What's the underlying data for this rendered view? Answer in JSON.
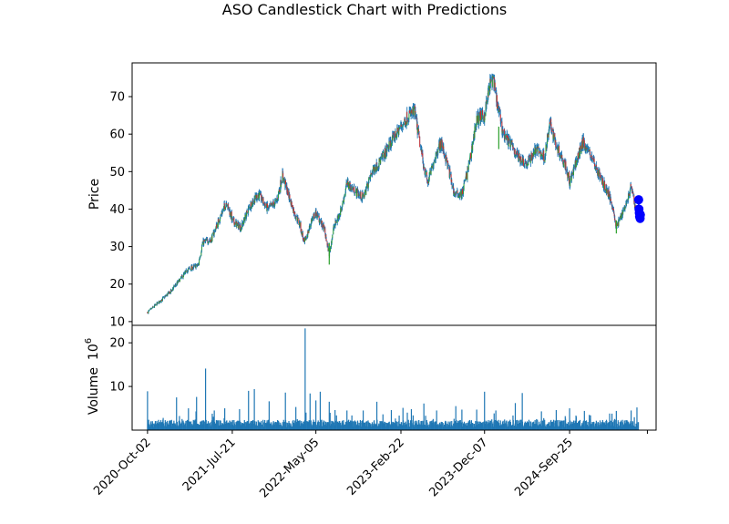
{
  "chart_data": {
    "type": "candlestick",
    "title": "ASO Candlestick Chart with Predictions",
    "price_panel": {
      "ylabel": "Price",
      "yticks": [
        10,
        20,
        30,
        40,
        50,
        60,
        70
      ],
      "ylim": [
        9,
        79
      ],
      "up_color": "#2ca02c",
      "down_color": "#d62728",
      "wick_mid_color": "#1f77b4",
      "close_path": [
        [
          "2020-10-02",
          12.5
        ],
        [
          "2020-11-15",
          15.5
        ],
        [
          "2020-12-20",
          18.0
        ],
        [
          "2021-01-20",
          21.0
        ],
        [
          "2021-02-20",
          24.0
        ],
        [
          "2021-03-25",
          25.0
        ],
        [
          "2021-04-10",
          31.0
        ],
        [
          "2021-05-10",
          32.0
        ],
        [
          "2021-06-10",
          38.0
        ],
        [
          "2021-07-01",
          42.0
        ],
        [
          "2021-07-21",
          37.0
        ],
        [
          "2021-08-20",
          35.0
        ],
        [
          "2021-09-20",
          41.0
        ],
        [
          "2021-10-20",
          44.0
        ],
        [
          "2021-11-20",
          40.0
        ],
        [
          "2021-12-20",
          42.0
        ],
        [
          "2022-01-10",
          49.0
        ],
        [
          "2022-01-30",
          44.0
        ],
        [
          "2022-02-20",
          39.0
        ],
        [
          "2022-03-10",
          36.0
        ],
        [
          "2022-03-25",
          31.0
        ],
        [
          "2022-04-05",
          33.0
        ],
        [
          "2022-04-20",
          37.0
        ],
        [
          "2022-05-05",
          39.0
        ],
        [
          "2022-06-01",
          35.0
        ],
        [
          "2022-06-20",
          28.0
        ],
        [
          "2022-07-05",
          35.0
        ],
        [
          "2022-08-01",
          40.0
        ],
        [
          "2022-08-20",
          47.0
        ],
        [
          "2022-09-15",
          45.0
        ],
        [
          "2022-10-15",
          43.0
        ],
        [
          "2022-11-15",
          50.0
        ],
        [
          "2022-12-15",
          53.0
        ],
        [
          "2023-01-20",
          58.0
        ],
        [
          "2023-02-22",
          62.0
        ],
        [
          "2023-03-20",
          65.0
        ],
        [
          "2023-04-10",
          66.0
        ],
        [
          "2023-04-25",
          59.0
        ],
        [
          "2023-05-10",
          52.0
        ],
        [
          "2023-05-25",
          47.0
        ],
        [
          "2023-06-20",
          54.0
        ],
        [
          "2023-07-10",
          58.0
        ],
        [
          "2023-08-01",
          52.0
        ],
        [
          "2023-08-25",
          44.0
        ],
        [
          "2023-09-20",
          44.0
        ],
        [
          "2023-10-15",
          52.0
        ],
        [
          "2023-11-10",
          64.0
        ],
        [
          "2023-12-07",
          65.0
        ],
        [
          "2023-12-25",
          73.0
        ],
        [
          "2024-01-05",
          75.0
        ],
        [
          "2024-01-20",
          68.0
        ],
        [
          "2024-02-10",
          60.0
        ],
        [
          "2024-03-01",
          58.0
        ],
        [
          "2024-04-01",
          54.0
        ],
        [
          "2024-05-01",
          52.0
        ],
        [
          "2024-06-01",
          56.0
        ],
        [
          "2024-07-01",
          54.0
        ],
        [
          "2024-07-20",
          63.0
        ],
        [
          "2024-08-10",
          57.0
        ],
        [
          "2024-09-10",
          52.0
        ],
        [
          "2024-09-25",
          47.0
        ],
        [
          "2024-10-20",
          53.0
        ],
        [
          "2024-11-10",
          58.0
        ],
        [
          "2024-12-10",
          54.0
        ],
        [
          "2025-01-05",
          49.0
        ],
        [
          "2025-02-01",
          45.0
        ],
        [
          "2025-02-20",
          41.0
        ],
        [
          "2025-03-05",
          35.0
        ],
        [
          "2025-03-20",
          38.0
        ],
        [
          "2025-04-10",
          42.0
        ],
        [
          "2025-04-25",
          46.0
        ],
        [
          "2025-05-10",
          40.0
        ],
        [
          "2025-05-20",
          41.0
        ]
      ],
      "predictions": {
        "color": "#0000ff",
        "points": [
          [
            "2025-05-21",
            42.5
          ],
          [
            "2025-05-22",
            40.0
          ],
          [
            "2025-05-23",
            39.0
          ],
          [
            "2025-05-24",
            38.0
          ],
          [
            "2025-05-26",
            37.5
          ],
          [
            "2025-05-27",
            38.5
          ]
        ]
      }
    },
    "volume_panel": {
      "ylabel": "Volume",
      "exponent_label": "10",
      "exponent_power": "6",
      "yticks": [
        10,
        20
      ],
      "ylim": [
        0,
        24
      ],
      "bar_color": "#1f77b4",
      "baseline_volume": 1.7,
      "spikes": [
        [
          "2020-10-02",
          8.9
        ],
        [
          "2020-11-25",
          2.8
        ],
        [
          "2021-01-10",
          7.5
        ],
        [
          "2021-02-20",
          5.0
        ],
        [
          "2021-03-20",
          7.6
        ],
        [
          "2021-04-20",
          14.1
        ],
        [
          "2021-05-20",
          4.5
        ],
        [
          "2021-06-25",
          5.0
        ],
        [
          "2021-08-15",
          4.8
        ],
        [
          "2021-09-15",
          9.0
        ],
        [
          "2021-10-05",
          9.4
        ],
        [
          "2021-11-25",
          6.6
        ],
        [
          "2022-01-20",
          8.6
        ],
        [
          "2022-02-25",
          5.3
        ],
        [
          "2022-03-29",
          23.3
        ],
        [
          "2022-04-15",
          8.4
        ],
        [
          "2022-05-05",
          6.8
        ],
        [
          "2022-05-20",
          8.8
        ],
        [
          "2022-06-20",
          6.5
        ],
        [
          "2022-07-10",
          4.6
        ],
        [
          "2022-08-20",
          4.5
        ],
        [
          "2022-10-15",
          4.5
        ],
        [
          "2022-12-01",
          6.5
        ],
        [
          "2023-01-20",
          4.6
        ],
        [
          "2023-03-01",
          5.1
        ],
        [
          "2023-03-30",
          4.8
        ],
        [
          "2023-05-12",
          6.1
        ],
        [
          "2023-06-25",
          4.5
        ],
        [
          "2023-08-30",
          5.5
        ],
        [
          "2023-09-20",
          4.7
        ],
        [
          "2023-11-10",
          4.7
        ],
        [
          "2023-12-07",
          8.8
        ],
        [
          "2024-01-15",
          4.5
        ],
        [
          "2024-03-22",
          6.2
        ],
        [
          "2024-04-15",
          8.5
        ],
        [
          "2024-06-20",
          4.3
        ],
        [
          "2024-08-10",
          4.6
        ],
        [
          "2024-09-25",
          5.0
        ],
        [
          "2024-11-15",
          4.4
        ],
        [
          "2025-02-10",
          3.8
        ],
        [
          "2025-03-05",
          4.4
        ],
        [
          "2025-04-25",
          4.5
        ],
        [
          "2025-05-15",
          5.2
        ]
      ]
    },
    "x_axis": {
      "tick_labels": [
        "2020-Oct-02",
        "2021-Jul-21",
        "2022-May-05",
        "2023-Feb-22",
        "2023-Dec-07",
        "2024-Sep-25"
      ],
      "tick_dates": [
        "2020-10-02",
        "2021-07-21",
        "2022-05-05",
        "2023-02-22",
        "2023-12-07",
        "2024-09-25"
      ],
      "range": [
        "2020-08-10",
        "2025-07-20"
      ],
      "label_rotation_deg": 45
    },
    "grid": false
  }
}
